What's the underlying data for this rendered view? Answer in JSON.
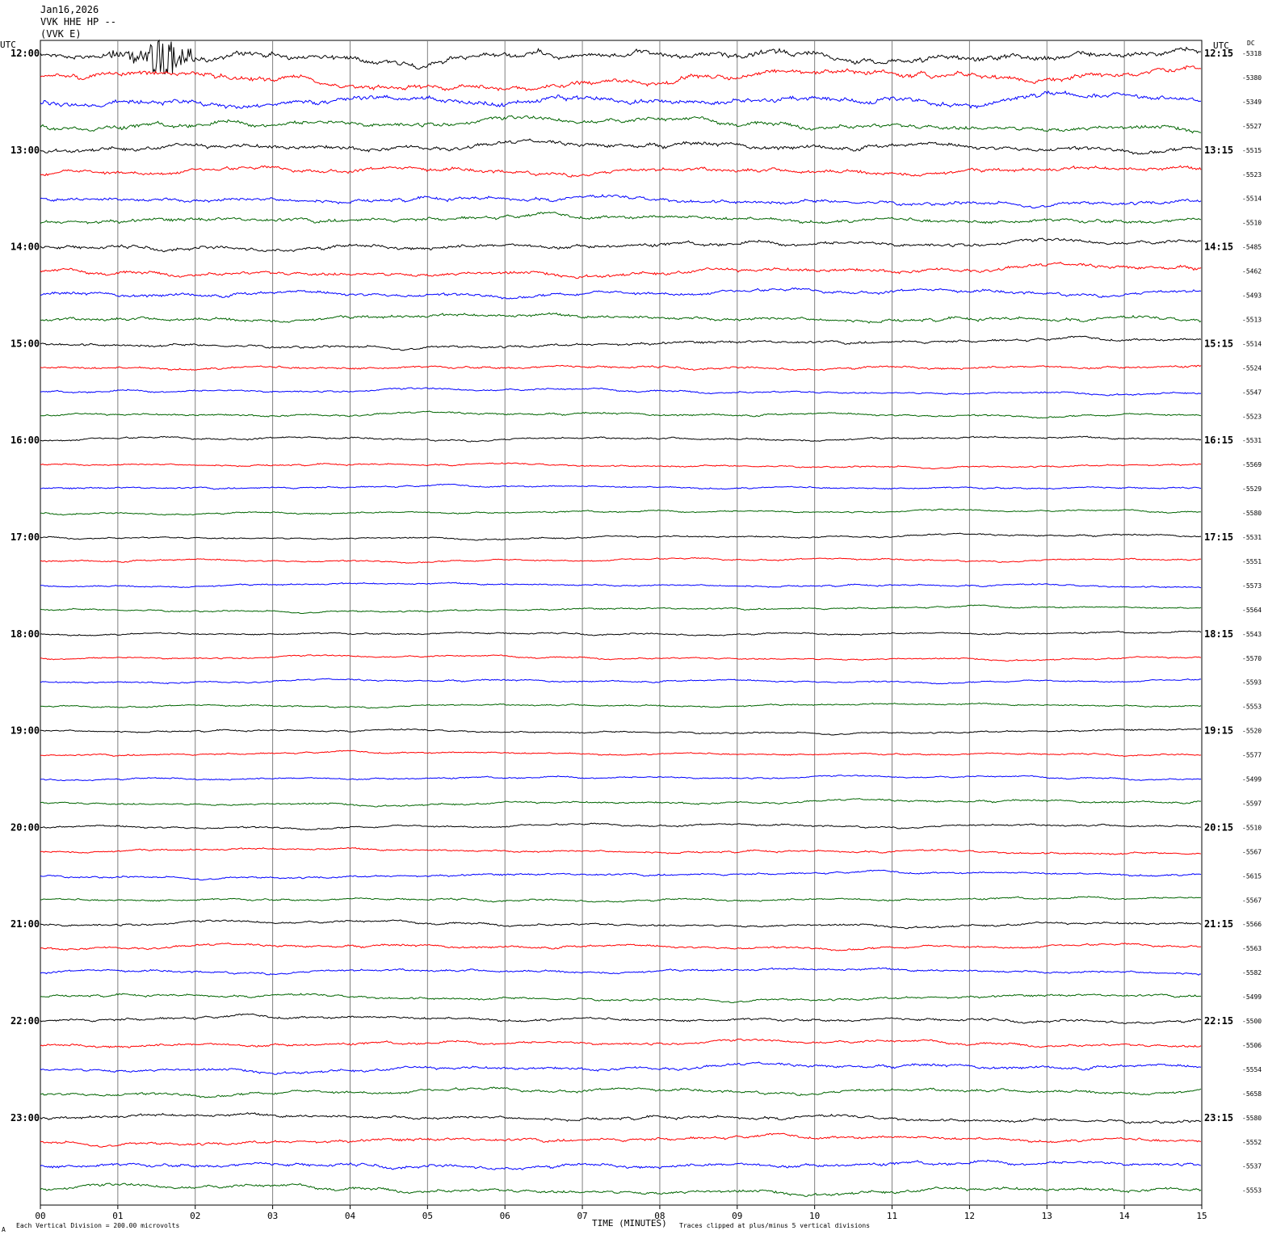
{
  "header": {
    "date": "Jan16,2026",
    "station": "VVK HHE HP --",
    "channel": "(VVK E)"
  },
  "left_axis_label": "UTC",
  "right_axis_label": "UTC",
  "dc_label": "DC",
  "x_axis_title": "TIME (MINUTES)",
  "footer_left": "Each Vertical Division =  200.00 microvolts",
  "footer_right": "Traces clipped at plus/minus 5 vertical divisions",
  "corner_mark": "A",
  "colors": {
    "black": "#000000",
    "red": "#ff0000",
    "blue": "#0000ff",
    "green": "#006400",
    "grid": "#808080"
  },
  "chart_data": {
    "type": "line",
    "title": "",
    "x_tick_labels": [
      "00",
      "01",
      "02",
      "03",
      "04",
      "05",
      "06",
      "07",
      "08",
      "09",
      "10",
      "11",
      "12",
      "13",
      "14",
      "15"
    ],
    "xlim": [
      0,
      15
    ],
    "rows": 48,
    "row_minutes": 15,
    "left_time_labels": [
      "12:00",
      "13:00",
      "14:00",
      "15:00",
      "16:00",
      "17:00",
      "18:00",
      "19:00",
      "20:00",
      "21:00",
      "22:00",
      "23:00"
    ],
    "right_time_labels": [
      "12:15",
      "13:15",
      "14:15",
      "15:15",
      "16:15",
      "17:15",
      "18:15",
      "19:15",
      "20:15",
      "21:15",
      "22:15",
      "23:15"
    ],
    "trace_colors": [
      "black",
      "red",
      "blue",
      "green"
    ],
    "dc_offsets": [
      "-5318",
      "-5380",
      "-5349",
      "-5527",
      "-5515",
      "-5523",
      "-5514",
      "-5510",
      "-5485",
      "-5462",
      "-5493",
      "-5513",
      "-5514",
      "-5524",
      "-5547",
      "-5523",
      "-5531",
      "-5569",
      "-5529",
      "-5580",
      "-5531",
      "-5551",
      "-5573",
      "-5564",
      "-5543",
      "-5570",
      "-5593",
      "-5553",
      "-5520",
      "-5577",
      "-5499",
      "-5597",
      "-5510",
      "-5567",
      "-5615",
      "-5567",
      "-5566",
      "-5563",
      "-5582",
      "-5499",
      "-5500",
      "-5506",
      "-5554",
      "-5658",
      "-5580",
      "-5552",
      "-5537",
      "-5553"
    ],
    "noise_amplitude": [
      1.8,
      1.6,
      1.6,
      1.4,
      1.3,
      1.2,
      1.1,
      1.1,
      1.1,
      1.1,
      1.0,
      1.0,
      0.8,
      0.7,
      0.6,
      0.6,
      0.6,
      0.5,
      0.5,
      0.5,
      0.5,
      0.5,
      0.5,
      0.5,
      0.5,
      0.5,
      0.5,
      0.5,
      0.5,
      0.5,
      0.5,
      0.6,
      0.6,
      0.6,
      0.6,
      0.6,
      0.7,
      0.7,
      0.7,
      0.7,
      0.8,
      0.8,
      0.9,
      0.9,
      0.9,
      0.9,
      1.0,
      1.0
    ],
    "events": [
      {
        "row": 0,
        "minute_start": 0.9,
        "minute_end": 2.0,
        "peak_minute": 1.6,
        "max_divisions": 5.0
      }
    ]
  }
}
